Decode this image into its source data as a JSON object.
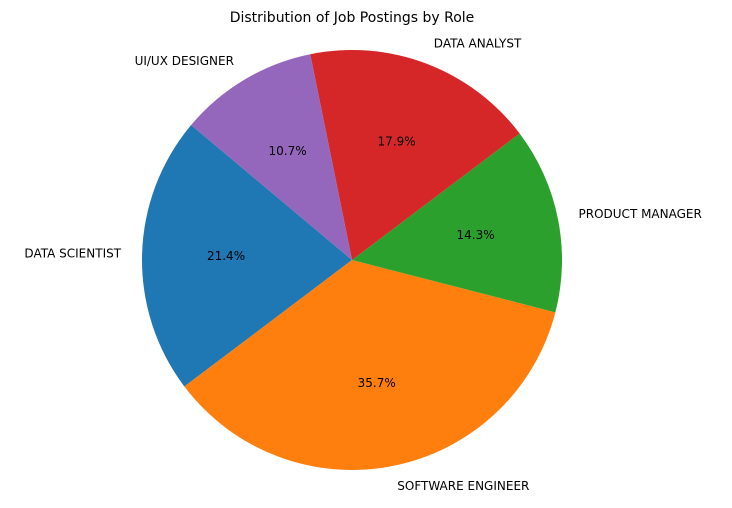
{
  "chart_data": {
    "type": "pie",
    "title": "Distribution of Job Postings by Role",
    "start_angle_deg": 140,
    "direction": "counterclockwise",
    "autopct_format": "{:.1f}%",
    "legend": "none",
    "slices": [
      {
        "label": "DATA SCIENTIST",
        "value": 21.4,
        "color": "#1f77b4"
      },
      {
        "label": "SOFTWARE ENGINEER",
        "value": 35.7,
        "color": "#ff7f0e"
      },
      {
        "label": "PRODUCT MANAGER",
        "value": 14.3,
        "color": "#2ca02c"
      },
      {
        "label": "DATA ANALYST",
        "value": 17.9,
        "color": "#d62728"
      },
      {
        "label": "UI/UX DESIGNER",
        "value": 10.7,
        "color": "#9467bd"
      }
    ]
  }
}
